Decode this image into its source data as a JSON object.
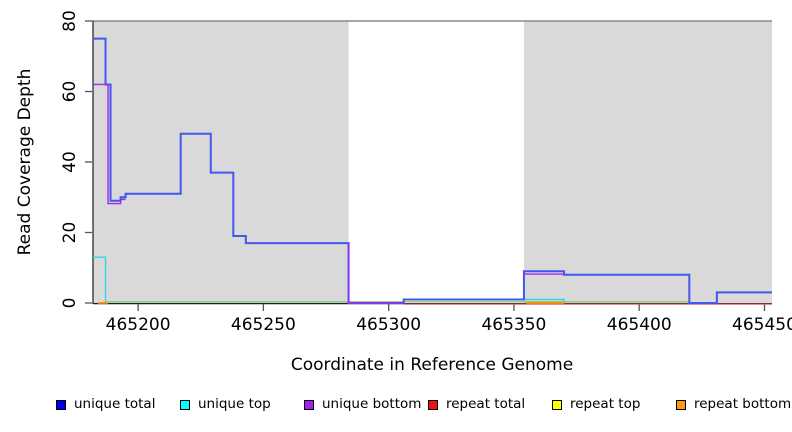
{
  "chart_data": {
    "type": "step",
    "title": "",
    "xlabel": "Coordinate in Reference Genome",
    "ylabel": "Read Coverage Depth",
    "xlim": [
      465182,
      465453
    ],
    "ylim": [
      0,
      80
    ],
    "xticks": [
      465200,
      465250,
      465300,
      465350,
      465400,
      465450
    ],
    "yticks": [
      0,
      20,
      40,
      60,
      80
    ],
    "grid": false,
    "legend_position": "bottom",
    "colors": {
      "region_fill": "#d9d9d9",
      "frame_top": "#8a8a8a",
      "axis": "#1f1f1f",
      "tick": "#555555"
    },
    "background_regions": [
      {
        "name": "shaded-region-left",
        "x0": 465182,
        "x1": 465284
      },
      {
        "name": "shaded-region-right",
        "x0": 465354,
        "x1": 465453
      }
    ],
    "series": [
      {
        "name": "repeat total",
        "color": "#dd4444",
        "width": 1.2,
        "segments": [
          [
            [
              465306,
              -0.3
            ],
            [
              465453,
              -0.3
            ]
          ]
        ]
      },
      {
        "name": "zero coverage line",
        "color": "#7ecf7e",
        "width": 1.4,
        "segments": [
          [
            [
              465187,
              0.35
            ],
            [
              465420,
              0.35
            ]
          ]
        ]
      },
      {
        "name": "repeat bottom",
        "color": "#ff8c00",
        "width": 1.7,
        "segments": [
          [
            [
              465184,
              0
            ],
            [
              465188,
              0
            ]
          ],
          [
            [
              465355,
              0
            ],
            [
              465370,
              0
            ]
          ]
        ]
      },
      {
        "name": "unique top",
        "color": "#2fd5e8",
        "width": 1.4,
        "segments": [
          [
            [
              465182,
              13
            ],
            [
              465187,
              13
            ],
            [
              465187,
              0.2
            ]
          ],
          [
            [
              465354,
              1
            ],
            [
              465370,
              1
            ],
            [
              465370,
              0.2
            ]
          ]
        ]
      },
      {
        "name": "unique total",
        "color": "#4257ee",
        "width": 2,
        "segments": [
          [
            [
              465182,
              75
            ],
            [
              465187,
              75
            ],
            [
              465187,
              62
            ],
            [
              465189,
              62
            ],
            [
              465189,
              29
            ],
            [
              465193,
              29
            ],
            [
              465193,
              30
            ],
            [
              465195,
              30
            ],
            [
              465195,
              31
            ],
            [
              465217,
              31
            ],
            [
              465217,
              48
            ],
            [
              465229,
              48
            ],
            [
              465229,
              37
            ],
            [
              465238,
              37
            ],
            [
              465238,
              19
            ],
            [
              465243,
              19
            ],
            [
              465243,
              17
            ],
            [
              465284,
              17
            ],
            [
              465284,
              0
            ],
            [
              465306,
              0
            ],
            [
              465306,
              1
            ],
            [
              465354,
              1
            ],
            [
              465354,
              9
            ],
            [
              465370,
              9
            ],
            [
              465370,
              8
            ],
            [
              465420,
              8
            ],
            [
              465420,
              0
            ],
            [
              465431,
              0
            ],
            [
              465431,
              3
            ],
            [
              465453,
              3
            ]
          ]
        ]
      },
      {
        "name": "unique bottom",
        "color": "#a228f0",
        "width": 1.4,
        "segments": [
          [
            [
              465182,
              62
            ],
            [
              465188,
              62
            ],
            [
              465188,
              28.2
            ],
            [
              465193,
              28.2
            ],
            [
              465193,
              29.4
            ],
            [
              465195,
              29.4
            ]
          ],
          [
            [
              465284,
              17
            ],
            [
              465284,
              0
            ],
            [
              465306,
              0
            ]
          ],
          [
            [
              465354,
              8.2
            ],
            [
              465370,
              8.2
            ]
          ]
        ]
      }
    ]
  },
  "legend": {
    "items": [
      {
        "label": "unique total",
        "color": "#0000ee"
      },
      {
        "label": "unique top",
        "color": "#00ffff"
      },
      {
        "label": "unique bottom",
        "color": "#a020f0"
      },
      {
        "label": "repeat total",
        "color": "#ee1111"
      },
      {
        "label": "repeat top",
        "color": "#ffff00"
      },
      {
        "label": "repeat bottom",
        "color": "#ff9914"
      }
    ]
  }
}
